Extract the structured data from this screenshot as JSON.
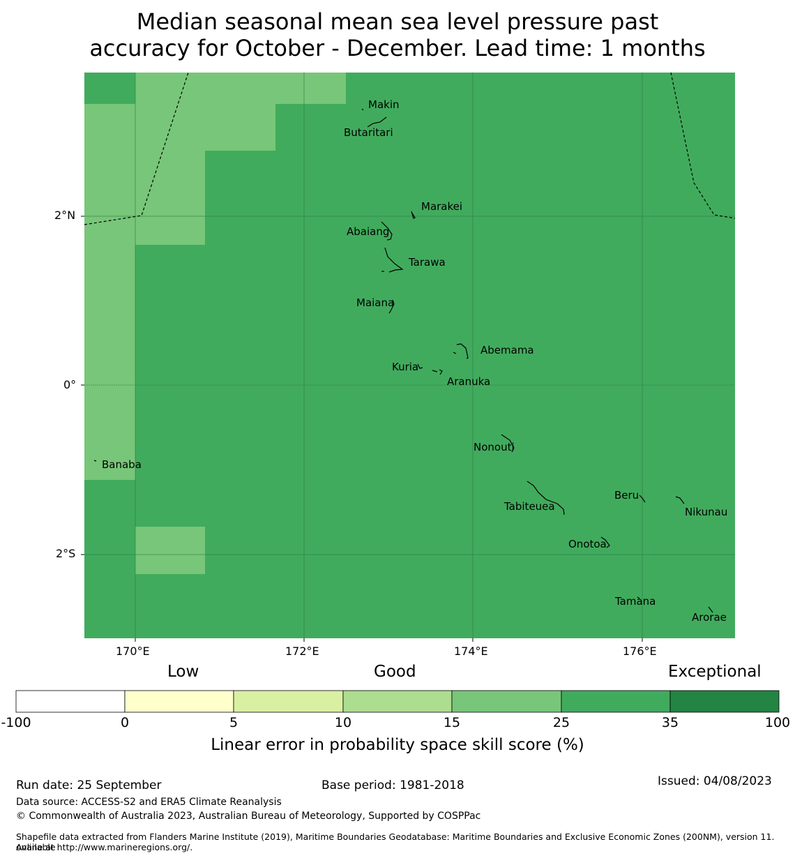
{
  "title": {
    "line1": "Median seasonal mean sea level pressure past",
    "line2": "accuracy for October - December. Lead time: 1 months"
  },
  "map": {
    "lat_labels": [
      "2°N",
      "0°",
      "2°S"
    ],
    "lon_labels": [
      "170°E",
      "172°E",
      "174°E",
      "176°E"
    ],
    "colors": {
      "exceptional_fill": "#41ab5d",
      "good_fill": "#78c679",
      "grid": "#2d7a45",
      "coast": "#000000"
    },
    "islands": [
      "Makin",
      "Butaritari",
      "Marakei",
      "Abaiang",
      "Tarawa",
      "Maiana",
      "Abemama",
      "Kuria",
      "Aranuka",
      "Nonouti",
      "Banaba",
      "Tabiteuea",
      "Beru",
      "Nikunau",
      "Onotoa",
      "Tamana",
      "Arorae"
    ]
  },
  "legend": {
    "categories": [
      "Low",
      "Good",
      "Exceptional"
    ],
    "ticks": [
      "-100",
      "0",
      "5",
      "10",
      "15",
      "25",
      "35",
      "100"
    ],
    "colors": [
      "#ffffff",
      "#ffffcc",
      "#d9f0a3",
      "#addd8e",
      "#78c679",
      "#41ab5d",
      "#238443"
    ],
    "title": "Linear error in probability space skill score (%)"
  },
  "footer": {
    "run_date": "Run date: 25 September",
    "base_period": "Base period: 1981-2018",
    "issued": "Issued: 04/08/2023",
    "data_source": "Data source: ACCESS-S2 and ERA5 Climate Reanalysis",
    "copyright": "© Commonwealth of Australia 2023, Australian Bureau of Meteorology, Supported by COSPPac",
    "shapefile_line1": "Shapefile data extracted from Flanders Marine Institute (2019), Maritime Boundaries Geodatabase: Maritime Boundaries and Exclusive Economic Zones (200NM), version 11. Available",
    "shapefile_line2": "online at http://www.marineregions.org/."
  }
}
